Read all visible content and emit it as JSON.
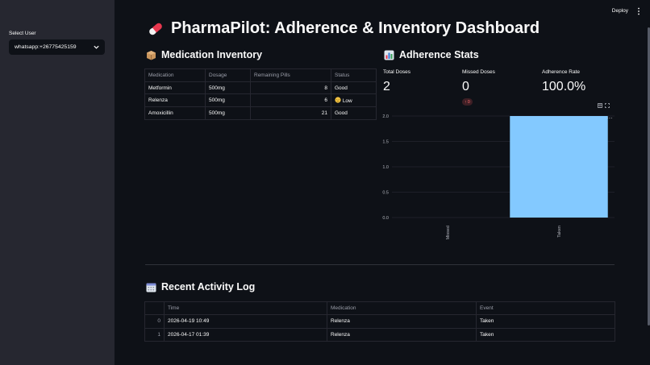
{
  "sidebar": {
    "select_label": "Select User",
    "selected_user": "whatsapp:+26775425159"
  },
  "topbar": {
    "deploy_label": "Deploy"
  },
  "header": {
    "title": "PharmaPilot: Adherence & Inventory Dashboard"
  },
  "inventory": {
    "heading": "Medication Inventory",
    "columns": [
      "Medication",
      "Dosage",
      "Remaining Pills",
      "Status"
    ],
    "rows": [
      {
        "medication": "Metformin",
        "dosage": "500mg",
        "remaining": "8",
        "status": "Good"
      },
      {
        "medication": "Relenza",
        "dosage": "500mg",
        "remaining": "6",
        "status": "Low"
      },
      {
        "medication": "Amoxicillin",
        "dosage": "500mg",
        "remaining": "21",
        "status": "Good"
      }
    ]
  },
  "stats": {
    "heading": "Adherence Stats",
    "total_label": "Total Doses",
    "total_value": "2",
    "missed_label": "Missed Doses",
    "missed_value": "0",
    "missed_delta": "0",
    "rate_label": "Adherence Rate",
    "rate_value": "100.0%"
  },
  "chart_data": {
    "type": "bar",
    "categories": [
      "Missed",
      "Taken"
    ],
    "values": [
      0,
      2
    ],
    "ylim": [
      0,
      2
    ],
    "yticks": [
      "0.0",
      "0.5",
      "1.0",
      "1.5",
      "2.0"
    ],
    "color": "#83c9ff",
    "grid": true
  },
  "log": {
    "heading": "Recent Activity Log",
    "columns": [
      "",
      "Time",
      "Medication",
      "Event"
    ],
    "rows": [
      {
        "index": "0",
        "time": "2026-04-19 10:49",
        "medication": "Relenza",
        "event": "Taken"
      },
      {
        "index": "1",
        "time": "2026-04-17 01:39",
        "medication": "Relenza",
        "event": "Taken"
      }
    ]
  }
}
